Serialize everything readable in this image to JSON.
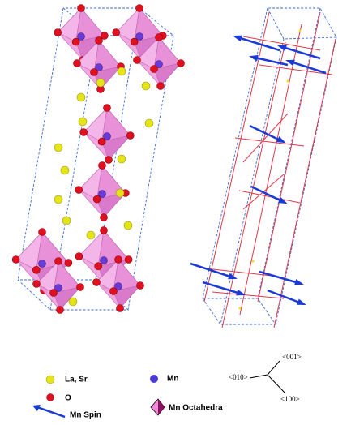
{
  "legend": {
    "la_sr": "La, Sr",
    "mn": "Mn",
    "o": "O",
    "mn_spin": "Mn Spin",
    "mn_octahedra": "Mn Octahedra"
  },
  "axes": {
    "c": "<001>",
    "b": "<010>",
    "a": "<100>"
  }
}
